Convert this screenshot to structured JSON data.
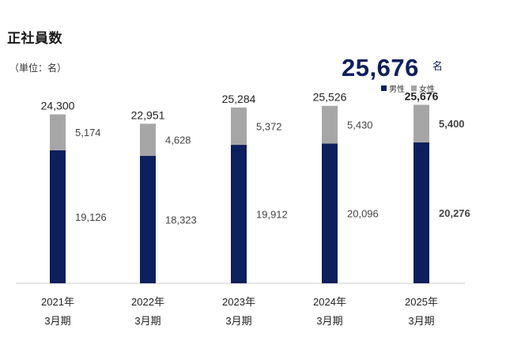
{
  "title": "正社員数",
  "unit_note": "（単位：名）",
  "headline": {
    "value": "25,676",
    "unit": "名"
  },
  "colors": {
    "male": "#0d1f5c",
    "female": "#a6a6a6",
    "axis": "#cccccc"
  },
  "legend": [
    {
      "label": "男性",
      "color": "#0d1f5c"
    },
    {
      "label": "女性",
      "color": "#a6a6a6"
    }
  ],
  "chart_data": {
    "type": "bar",
    "stacked": true,
    "categories": [
      "2021年",
      "2022年",
      "2023年",
      "2024年",
      "2025年"
    ],
    "category_sublabels": [
      "3月期",
      "3月期",
      "3月期",
      "3月期",
      "3月期"
    ],
    "series": [
      {
        "name": "男性",
        "values": [
          19126,
          18323,
          19912,
          20096,
          20276
        ],
        "labels": [
          "19,126",
          "18,323",
          "19,912",
          "20,096",
          "20,276"
        ]
      },
      {
        "name": "女性",
        "values": [
          5174,
          4628,
          5372,
          5430,
          5400
        ],
        "labels": [
          "5,174",
          "4,628",
          "5,372",
          "5,430",
          "5,400"
        ]
      }
    ],
    "totals": [
      24300,
      22951,
      25284,
      25526,
      25676
    ],
    "total_labels": [
      "24,300",
      "22,951",
      "25,284",
      "25,526",
      "25,676"
    ],
    "highlight_index": 4,
    "ylim": [
      0,
      28000
    ],
    "grid": false,
    "legend_position": "top-right"
  }
}
